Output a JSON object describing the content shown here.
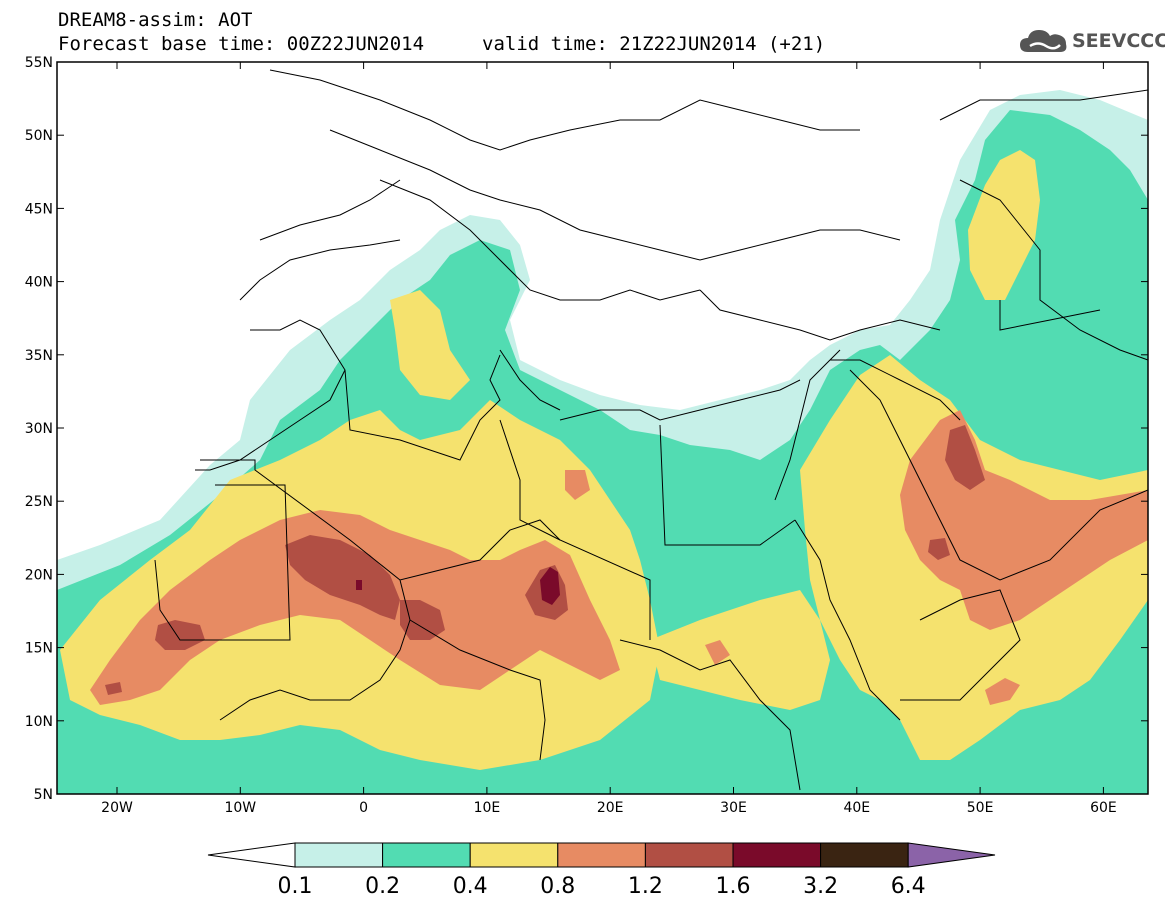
{
  "header": {
    "title": "DREAM8-assim: AOT",
    "base_time": "Forecast base time: 00Z22JUN2014",
    "valid_time": "valid time: 21Z22JUN2014 (+21)"
  },
  "logo": {
    "text": "SEEVCCC",
    "icon": "cloud-icon"
  },
  "map": {
    "lat_labels": [
      "55N",
      "50N",
      "45N",
      "40N",
      "35N",
      "30N",
      "25N",
      "20N",
      "15N",
      "10N",
      "5N"
    ],
    "lon_labels": [
      "20W",
      "10W",
      "0",
      "10E",
      "20E",
      "30E",
      "40E",
      "50E",
      "60E"
    ]
  },
  "colorbar": {
    "labels": [
      "0.1",
      "0.2",
      "0.4",
      "0.8",
      "1.2",
      "1.6",
      "3.2",
      "6.4"
    ],
    "colors": [
      "#ffffff",
      "#c6f0e8",
      "#52dcb2",
      "#f5e26e",
      "#e78b63",
      "#b14f44",
      "#7a0a2a",
      "#3a2412",
      "#8b63a8"
    ]
  }
}
